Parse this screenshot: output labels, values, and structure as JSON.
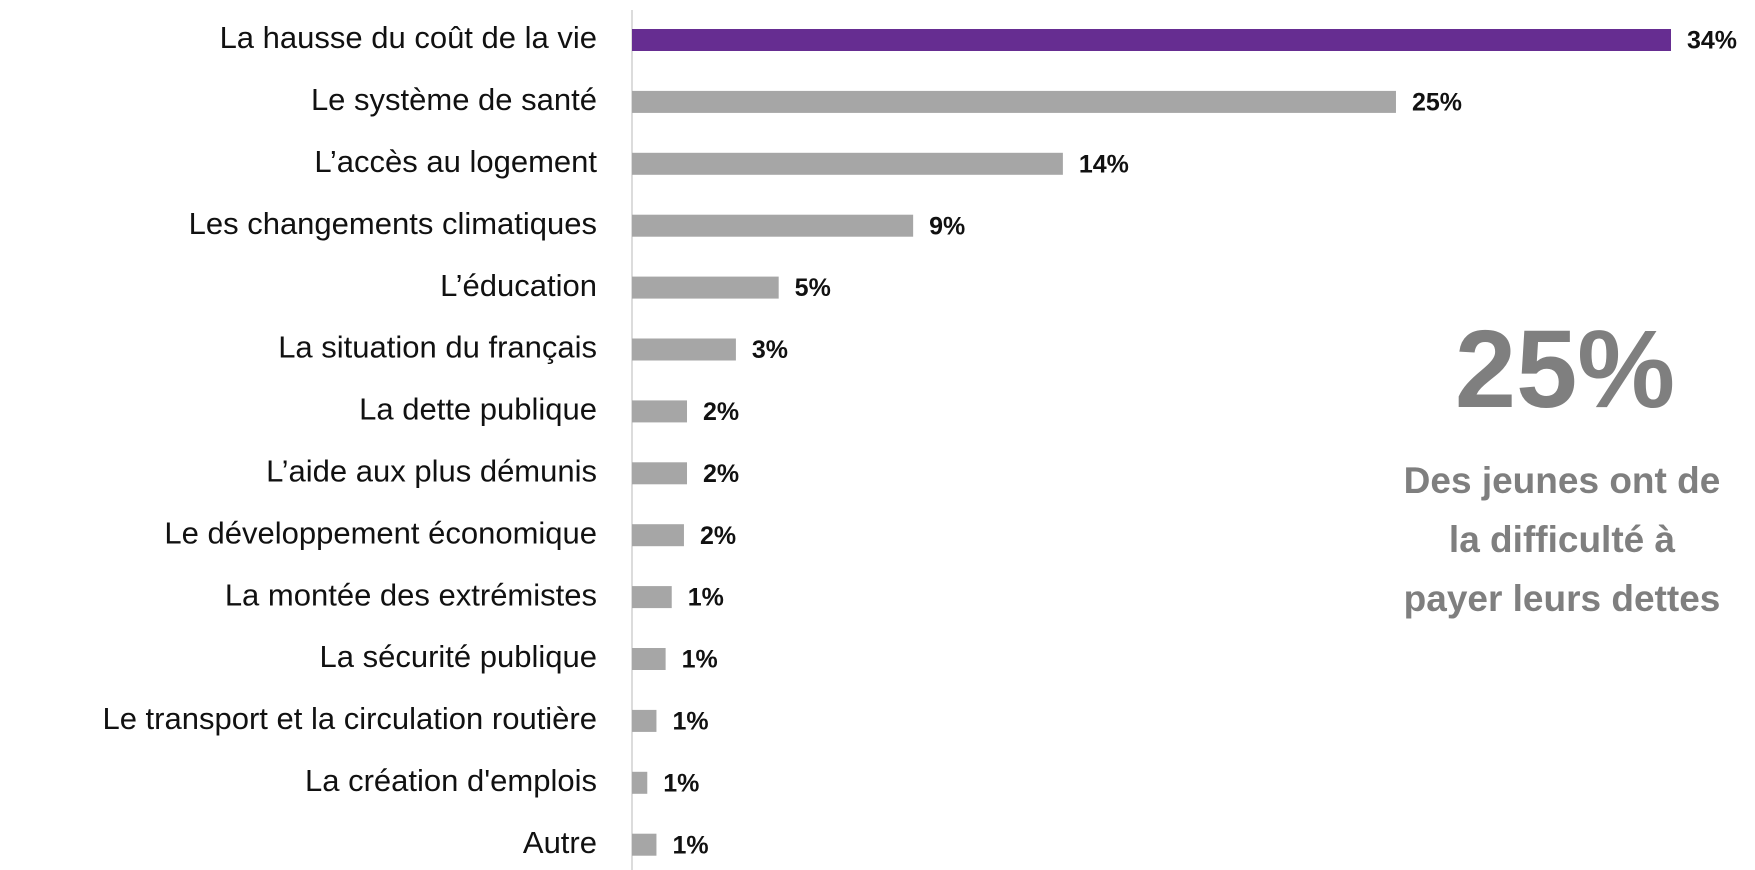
{
  "chart_data": {
    "type": "hbar",
    "categories": [
      "La hausse du coût de la vie",
      "Le système de santé",
      "L’accès au logement",
      "Les changements climatiques",
      "L’éducation",
      "La situation du français",
      "La dette publique",
      "L’aide aux plus démunis",
      "Le développement économique",
      "La montée des extrémistes",
      "La sécurité publique",
      "Le transport et la circulation routière",
      "La création d'emplois",
      "Autre"
    ],
    "values": [
      34,
      25,
      14.1,
      9.2,
      4.8,
      3.4,
      1.8,
      1.8,
      1.7,
      1.3,
      1.1,
      0.8,
      0.5,
      0.8
    ],
    "value_labels": [
      "34%",
      "25%",
      "14%",
      "9%",
      "5%",
      "3%",
      "2%",
      "2%",
      "2%",
      "1%",
      "1%",
      "1%",
      "1%",
      "1%"
    ],
    "colors": [
      "#662d91",
      "#a6a6a6",
      "#a6a6a6",
      "#a6a6a6",
      "#a6a6a6",
      "#a6a6a6",
      "#a6a6a6",
      "#a6a6a6",
      "#a6a6a6",
      "#a6a6a6",
      "#a6a6a6",
      "#a6a6a6",
      "#a6a6a6",
      "#a6a6a6"
    ],
    "xlim": [
      0,
      34
    ],
    "annotations": {
      "headline": "25%",
      "lines": [
        "Des jeunes ont de",
        "la difficulté à",
        "payer leurs dettes"
      ]
    }
  }
}
